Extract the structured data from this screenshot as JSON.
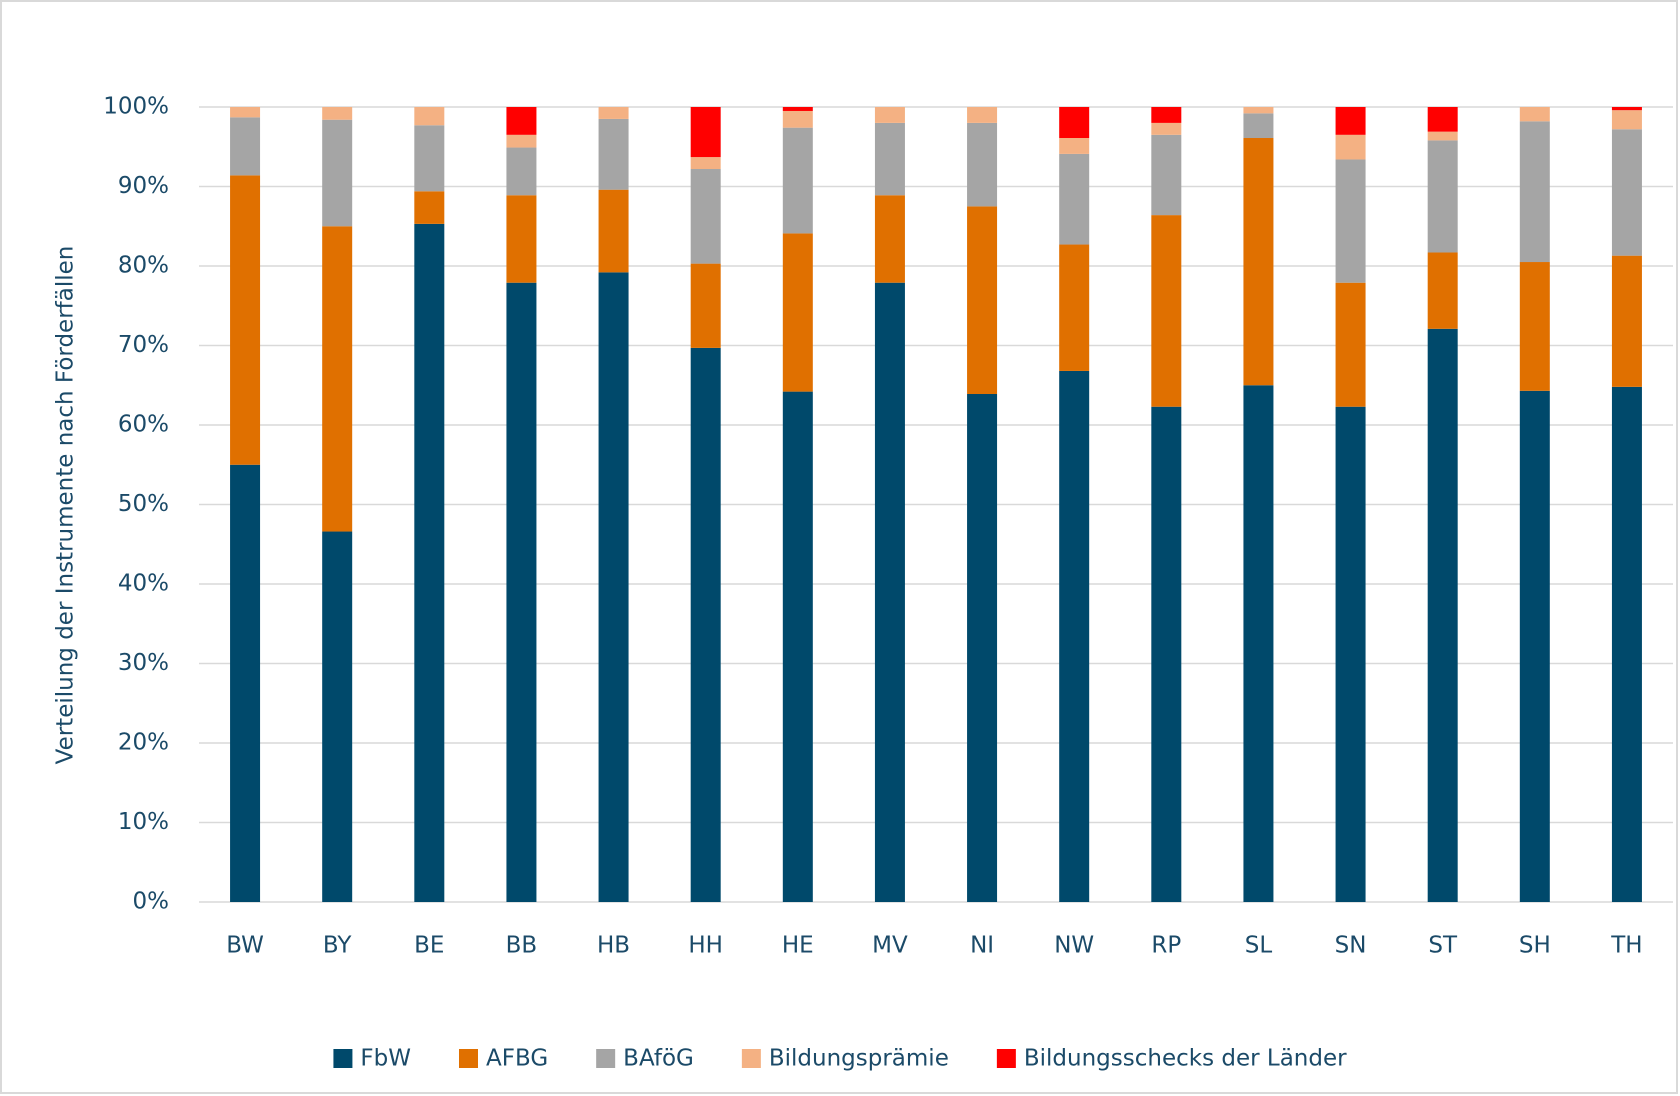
{
  "chart_data": {
    "type": "stacked_bar",
    "y_label": "Verteilung der Instrumente nach Förderfällen",
    "categories": [
      "BW",
      "BY",
      "BE",
      "BB",
      "HB",
      "HH",
      "HE",
      "MV",
      "NI",
      "NW",
      "RP",
      "SL",
      "SN",
      "ST",
      "SH",
      "TH"
    ],
    "series": [
      {
        "name": "FbW",
        "color": "#00496b",
        "values": [
          55.0,
          46.6,
          85.3,
          77.9,
          79.2,
          69.7,
          64.2,
          77.9,
          63.9,
          66.8,
          62.3,
          65.0,
          62.3,
          72.1,
          64.3,
          64.8
        ]
      },
      {
        "name": "AFBG",
        "color": "#e07000",
        "values": [
          36.4,
          38.4,
          4.1,
          11.0,
          10.4,
          10.6,
          19.9,
          11.0,
          23.6,
          15.9,
          24.1,
          31.1,
          15.6,
          9.6,
          16.2,
          16.5
        ]
      },
      {
        "name": "BAföG",
        "color": "#a5a5a5",
        "values": [
          7.3,
          13.4,
          8.3,
          6.0,
          8.9,
          11.9,
          13.3,
          9.1,
          10.5,
          11.4,
          10.1,
          3.1,
          15.5,
          14.1,
          17.7,
          15.9
        ]
      },
      {
        "name": "Bildungsprämie",
        "color": "#f4b183",
        "values": [
          1.3,
          1.6,
          2.3,
          1.6,
          1.5,
          1.5,
          2.1,
          2.0,
          2.0,
          2.0,
          1.5,
          0.8,
          3.1,
          1.1,
          1.8,
          2.4
        ]
      },
      {
        "name": "Bildungsschecks der Länder",
        "color": "#ff0000",
        "values": [
          0,
          0,
          0,
          3.5,
          0,
          6.3,
          0.5,
          0,
          0,
          3.9,
          2.0,
          0,
          3.5,
          3.1,
          0,
          0.4
        ]
      }
    ],
    "ylim": [
      0,
      100
    ],
    "yticks": [
      {
        "value": 0,
        "label": "0%"
      },
      {
        "value": 10,
        "label": "10%"
      },
      {
        "value": 20,
        "label": "20%"
      },
      {
        "value": 30,
        "label": "30%"
      },
      {
        "value": 40,
        "label": "40%"
      },
      {
        "value": 50,
        "label": "50%"
      },
      {
        "value": 60,
        "label": "60%"
      },
      {
        "value": 70,
        "label": "70%"
      },
      {
        "value": 80,
        "label": "80%"
      },
      {
        "value": 90,
        "label": "90%"
      },
      {
        "value": 100,
        "label": "100%"
      }
    ],
    "grid": true,
    "legend": "bottom"
  }
}
